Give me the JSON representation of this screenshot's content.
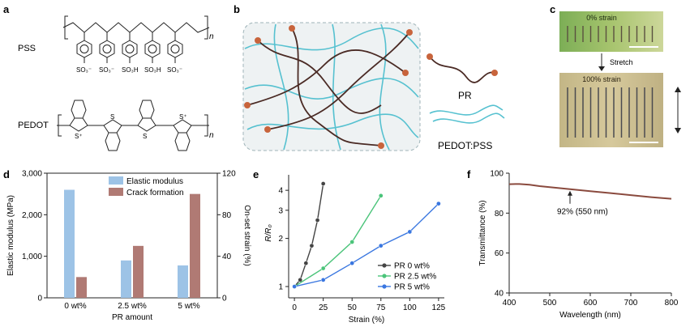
{
  "panels": {
    "a": "a",
    "b": "b",
    "c": "c",
    "d": "d",
    "e": "e",
    "f": "f"
  },
  "panel_a": {
    "pss_label": "PSS",
    "pedot_label": "PEDOT",
    "n_label": "n",
    "sulfonate_labels": [
      "SO₃⁻",
      "SO₃⁻",
      "SO₃H",
      "SO₃H",
      "SO₃⁻"
    ],
    "s_plus": "S⁺",
    "s": "S"
  },
  "panel_b": {
    "pr_label": "PR",
    "pedotpss_label": "PEDOT:PSS"
  },
  "panel_c": {
    "top_label": "0% strain",
    "arrow_label": "Stretch",
    "bottom_label": "100% strain"
  },
  "chart_data": [
    {
      "panel": "d",
      "type": "bar",
      "categories": [
        "0 wt%",
        "2.5 wt%",
        "5 wt%"
      ],
      "xlabel": "PR amount",
      "ylabel": "Elastic modulus (MPa)",
      "y2label": "On-set strain (%)",
      "ylim": [
        0,
        3000
      ],
      "y2lim": [
        0,
        120
      ],
      "yticks": [
        "0",
        "1,000",
        "2,000",
        "3,000"
      ],
      "y2ticks": [
        "0",
        "40",
        "80",
        "120"
      ],
      "series": [
        {
          "name": "Elastic modulus",
          "axis": "left",
          "color": "#9dc3e6",
          "values": [
            2600,
            900,
            780
          ]
        },
        {
          "name": "Crack formation",
          "axis": "right",
          "color": "#b07a74",
          "values": [
            20,
            50,
            100
          ]
        }
      ],
      "legend": "top-center"
    },
    {
      "panel": "e",
      "type": "line",
      "xlabel": "Strain (%)",
      "ylabel": "R/R₀",
      "yscale": "log",
      "xlim": [
        -5,
        130
      ],
      "ylim": [
        0.85,
        5
      ],
      "xticks": [
        0,
        25,
        50,
        75,
        100,
        125
      ],
      "yticks": [
        1,
        2,
        3,
        4
      ],
      "series": [
        {
          "name": "PR 0 wt%",
          "color": "#444444",
          "x": [
            0,
            5,
            10,
            15,
            20,
            25
          ],
          "y": [
            1.0,
            1.1,
            1.4,
            1.8,
            2.6,
            4.4
          ]
        },
        {
          "name": "PR 2.5 wt%",
          "color": "#4bc47a",
          "x": [
            0,
            25,
            50,
            75
          ],
          "y": [
            1.0,
            1.3,
            1.9,
            3.7
          ]
        },
        {
          "name": "PR 5 wt%",
          "color": "#3a77e0",
          "x": [
            0,
            25,
            50,
            75,
            100,
            125
          ],
          "y": [
            1.0,
            1.1,
            1.4,
            1.8,
            2.2,
            3.3
          ]
        }
      ],
      "legend": "bottom-right"
    },
    {
      "panel": "f",
      "type": "line",
      "xlabel": "Wavelength (nm)",
      "ylabel": "Transmittance (%)",
      "xlim": [
        400,
        800
      ],
      "ylim": [
        40,
        100
      ],
      "xticks": [
        400,
        500,
        600,
        700,
        800
      ],
      "yticks": [
        40,
        60,
        80,
        100
      ],
      "annotation": "92% (550 nm)",
      "series": [
        {
          "name": "",
          "color": "#8a4a3e",
          "x": [
            400,
            425,
            450,
            475,
            500,
            525,
            550,
            575,
            600,
            650,
            700,
            750,
            800
          ],
          "y": [
            94.5,
            94.6,
            94.2,
            93.5,
            93.0,
            92.5,
            92.0,
            91.5,
            91.0,
            90.0,
            89.0,
            88.0,
            87.2
          ]
        }
      ]
    }
  ]
}
